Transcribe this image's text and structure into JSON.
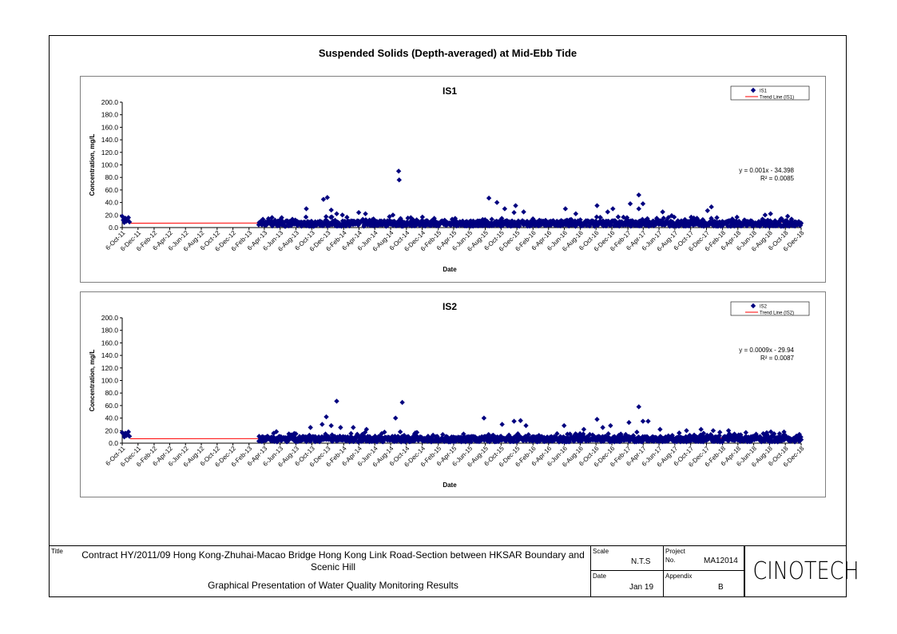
{
  "page": {
    "main_title": "Suspended Solids (Depth-averaged) at Mid-Ebb Tide"
  },
  "colors": {
    "marker": "#00007f",
    "trend": "#ff0000"
  },
  "chart_data": [
    {
      "type": "scatter",
      "title": "IS1",
      "xlabel": "Date",
      "ylabel": "Concentration, mg/L",
      "ylim": [
        0,
        200
      ],
      "yticks": [
        "0.0",
        "20.0",
        "40.0",
        "60.0",
        "80.0",
        "100.0",
        "120.0",
        "140.0",
        "160.0",
        "180.0",
        "200.0"
      ],
      "xticks": [
        "6-Oct-11",
        "6-Dec-11",
        "6-Feb-12",
        "6-Apr-12",
        "6-Jun-12",
        "6-Aug-12",
        "6-Oct-12",
        "6-Dec-12",
        "6-Feb-13",
        "6-Apr-13",
        "6-Jun-13",
        "6-Aug-13",
        "6-Oct-13",
        "6-Dec-13",
        "6-Feb-14",
        "6-Apr-14",
        "6-Jun-14",
        "6-Aug-14",
        "6-Oct-14",
        "6-Dec-14",
        "6-Feb-15",
        "6-Apr-15",
        "6-Jun-15",
        "6-Aug-15",
        "6-Oct-15",
        "6-Dec-15",
        "6-Feb-16",
        "6-Apr-16",
        "6-Jun-16",
        "6-Aug-16",
        "6-Oct-16",
        "6-Dec-16",
        "6-Feb-17",
        "6-Apr-17",
        "6-Jun-17",
        "6-Aug-17",
        "6-Oct-17",
        "6-Dec-17",
        "6-Feb-18",
        "6-Apr-18",
        "6-Jun-18",
        "6-Aug-18",
        "6-Oct-18",
        "6-Dec-18"
      ],
      "legend": {
        "position": "top-right",
        "series_label": "IS1",
        "trend_label": "Trend Line (IS1)"
      },
      "equation": "y = 0.001x - 34.398",
      "r2": "R² = 0.0085",
      "grid": false,
      "series": [
        {
          "name": "IS1",
          "x_start": "6-Oct-11",
          "x_end": "6-Dec-18",
          "gap": [
            "6-Nov-11",
            "15-Mar-13"
          ],
          "baseline": 7,
          "points": [
            [
              "6-Oct-11",
              18
            ],
            [
              "10-Oct-11",
              12
            ],
            [
              "14-Oct-11",
              8
            ],
            [
              "18-Oct-11",
              15
            ],
            [
              "22-Oct-11",
              10
            ],
            [
              "26-Oct-11",
              13
            ],
            [
              "30-Oct-11",
              16
            ],
            [
              "3-Nov-11",
              9
            ],
            [
              "15-Sep-13",
              30
            ],
            [
              "20-Nov-13",
              45
            ],
            [
              "5-Dec-13",
              48
            ],
            [
              "10-Jan-14",
              22
            ],
            [
              "20-Dec-13",
              28
            ],
            [
              "1-Feb-14",
              20
            ],
            [
              "5-Apr-14",
              24
            ],
            [
              "1-May-14",
              22
            ],
            [
              "15-Aug-14",
              20
            ],
            [
              "6-Sep-14",
              90
            ],
            [
              "8-Sep-14",
              76
            ],
            [
              "20-Aug-15",
              47
            ],
            [
              "20-Sep-15",
              40
            ],
            [
              "20-Oct-15",
              30
            ],
            [
              "1-Dec-15",
              35
            ],
            [
              "25-Nov-15",
              24
            ],
            [
              "1-Jan-16",
              25
            ],
            [
              "10-Jun-16",
              30
            ],
            [
              "20-Jul-16",
              22
            ],
            [
              "10-Oct-16",
              35
            ],
            [
              "20-Nov-16",
              25
            ],
            [
              "10-Dec-16",
              30
            ],
            [
              "15-Feb-17",
              38
            ],
            [
              "20-Mar-17",
              52
            ],
            [
              "5-Apr-17",
              38
            ],
            [
              "20-Mar-17",
              30
            ],
            [
              "20-Jun-17",
              25
            ],
            [
              "25-Dec-17",
              33
            ],
            [
              "10-Dec-17",
              27
            ],
            [
              "20-Jul-18",
              20
            ],
            [
              "10-Aug-18",
              22
            ],
            [
              "15-Oct-18",
              18
            ]
          ]
        }
      ]
    },
    {
      "type": "scatter",
      "title": "IS2",
      "xlabel": "Date",
      "ylabel": "Concentration, mg/L",
      "ylim": [
        0,
        200
      ],
      "yticks": [
        "0.0",
        "20.0",
        "40.0",
        "60.0",
        "80.0",
        "100.0",
        "120.0",
        "140.0",
        "160.0",
        "180.0",
        "200.0"
      ],
      "xticks": [
        "6-Oct-11",
        "6-Dec-11",
        "6-Feb-12",
        "6-Apr-12",
        "6-Jun-12",
        "6-Aug-12",
        "6-Oct-12",
        "6-Dec-12",
        "6-Feb-13",
        "6-Apr-13",
        "6-Jun-13",
        "6-Aug-13",
        "6-Oct-13",
        "6-Dec-13",
        "6-Feb-14",
        "6-Apr-14",
        "6-Jun-14",
        "6-Aug-14",
        "6-Oct-14",
        "6-Dec-14",
        "6-Feb-15",
        "6-Apr-15",
        "6-Jun-15",
        "6-Aug-15",
        "6-Oct-15",
        "6-Dec-15",
        "6-Feb-16",
        "6-Apr-16",
        "6-Jun-16",
        "6-Aug-16",
        "6-Oct-16",
        "6-Dec-16",
        "6-Feb-17",
        "6-Apr-17",
        "6-Jun-17",
        "6-Aug-17",
        "6-Oct-17",
        "6-Dec-17",
        "6-Feb-18",
        "6-Apr-18",
        "6-Jun-18",
        "6-Aug-18",
        "6-Oct-18",
        "6-Dec-18"
      ],
      "legend": {
        "position": "top-right",
        "series_label": "IS2",
        "trend_label": "Trend Line (IS2)"
      },
      "equation": "y = 0.0009x - 29.94",
      "r2": "R² = 0.0087",
      "grid": false,
      "series": [
        {
          "name": "IS2",
          "x_start": "6-Oct-11",
          "x_end": "6-Dec-18",
          "gap": [
            "6-Nov-11",
            "15-Mar-13"
          ],
          "baseline": 7,
          "points": [
            [
              "6-Oct-11",
              17
            ],
            [
              "10-Oct-11",
              15
            ],
            [
              "14-Oct-11",
              10
            ],
            [
              "18-Oct-11",
              16
            ],
            [
              "22-Oct-11",
              12
            ],
            [
              "26-Oct-11",
              14
            ],
            [
              "30-Oct-11",
              18
            ],
            [
              "3-Nov-11",
              11
            ],
            [
              "1-Oct-13",
              25
            ],
            [
              "15-Nov-13",
              30
            ],
            [
              "1-Dec-13",
              42
            ],
            [
              "20-Dec-13",
              28
            ],
            [
              "10-Jan-14",
              67
            ],
            [
              "25-Jan-14",
              25
            ],
            [
              "15-Mar-14",
              25
            ],
            [
              "5-May-14",
              22
            ],
            [
              "25-Aug-14",
              40
            ],
            [
              "20-Sep-14",
              65
            ],
            [
              "1-Aug-15",
              40
            ],
            [
              "10-Oct-15",
              30
            ],
            [
              "25-Nov-15",
              35
            ],
            [
              "20-Dec-15",
              36
            ],
            [
              "10-Jan-16",
              28
            ],
            [
              "5-Jun-16",
              28
            ],
            [
              "20-Aug-16",
              22
            ],
            [
              "10-Oct-16",
              38
            ],
            [
              "1-Nov-16",
              25
            ],
            [
              "1-Dec-16",
              28
            ],
            [
              "10-Feb-17",
              33
            ],
            [
              "20-Mar-17",
              58
            ],
            [
              "5-Apr-17",
              35
            ],
            [
              "25-Apr-17",
              35
            ],
            [
              "10-Jun-17",
              22
            ],
            [
              "20-Sep-17",
              20
            ],
            [
              "15-Nov-17",
              22
            ],
            [
              "1-Jan-18",
              20
            ],
            [
              "1-Mar-18",
              20
            ]
          ]
        }
      ]
    }
  ],
  "title_block": {
    "title_label": "Title",
    "contract": "Contract HY/2011/09 Hong Kong-Zhuhai-Macao Bridge Hong Kong Link Road-Section between HKSAR Boundary and Scenic Hill",
    "subtitle": "Graphical Presentation of Water Quality Monitoring Results",
    "scale_label": "Scale",
    "scale_value": "N.T.S",
    "date_label": "Date",
    "date_value": "Jan 19",
    "project_label": "Project",
    "project_no_label": "No.",
    "project_no_value": "MA12014",
    "appendix_label": "Appendix",
    "appendix_value": "B",
    "logo_text": "CINOTECH"
  }
}
